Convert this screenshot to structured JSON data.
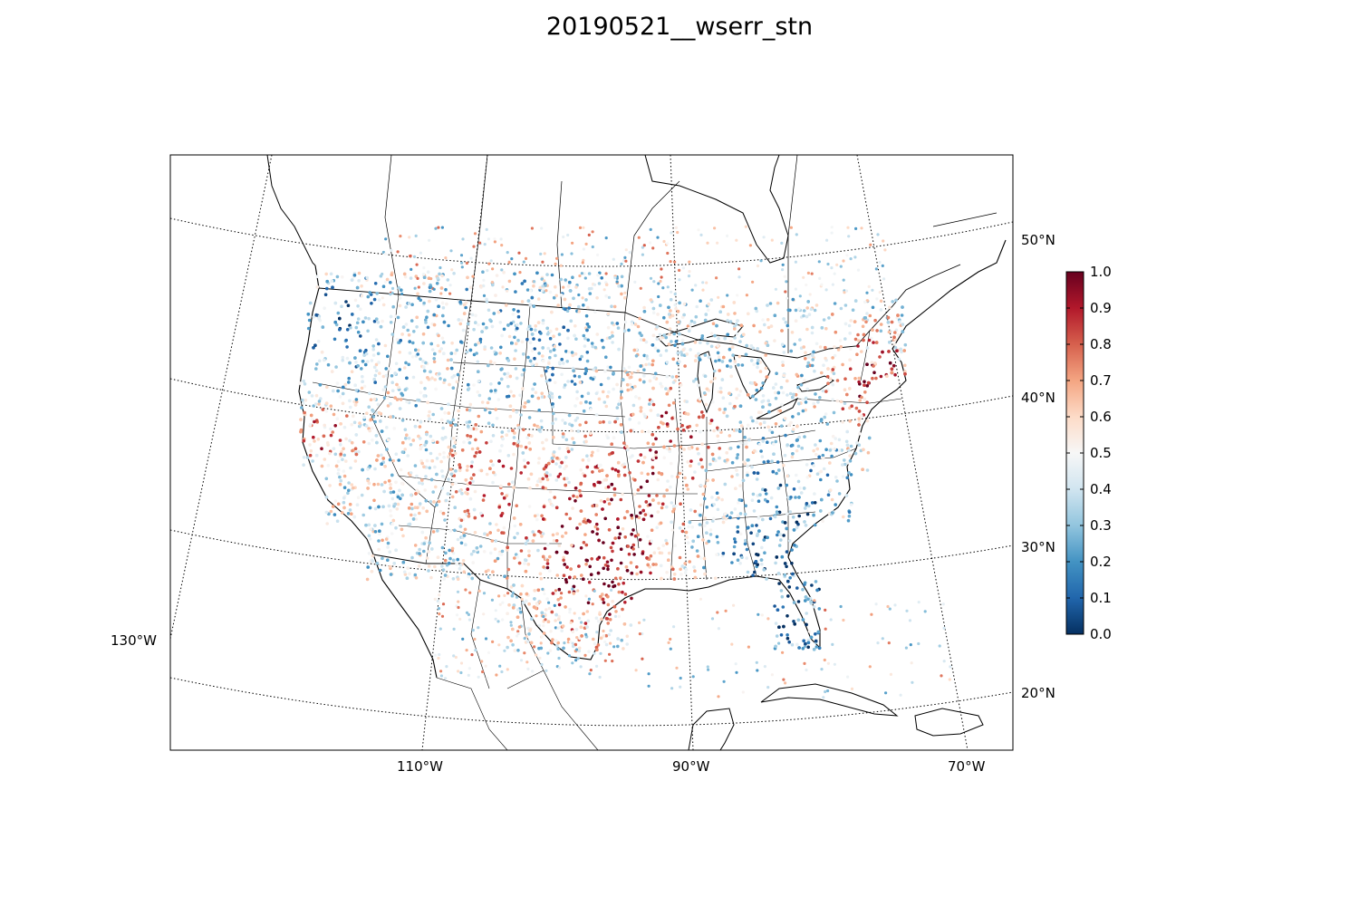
{
  "title": "20190521__wserr_stn",
  "map": {
    "projection": "Lambert conformal conic, CONUS",
    "parallels": [
      {
        "label": "50°N"
      },
      {
        "label": "40°N"
      },
      {
        "label": "30°N"
      },
      {
        "label": "20°N"
      }
    ],
    "meridians": [
      {
        "label": "130°W"
      },
      {
        "label": "110°W"
      },
      {
        "label": "90°W"
      },
      {
        "label": "70°W"
      }
    ],
    "coastline_color": "#000000",
    "graticule_style": "dotted"
  },
  "colorbar": {
    "colormap": "RdBu_r",
    "min": 0.0,
    "max": 1.0,
    "ticks": [
      "0.0",
      "0.1",
      "0.2",
      "0.3",
      "0.4",
      "0.5",
      "0.6",
      "0.7",
      "0.8",
      "0.9",
      "1.0"
    ],
    "stops": [
      "#053061",
      "#2166ac",
      "#4393c3",
      "#92c5de",
      "#d1e5f0",
      "#f7f7f7",
      "#fddbc7",
      "#f4a582",
      "#d6604d",
      "#b2182b",
      "#67001f"
    ]
  },
  "chart_data": {
    "type": "scatter",
    "title": "20190521__wserr_stn",
    "value_range": [
      0.0,
      1.0
    ],
    "variable": "wserr_stn",
    "note_regions": [
      {
        "region": "Northeast / New England",
        "level": "high"
      },
      {
        "region": "Texas / Oklahoma / Kansas",
        "level": "high"
      },
      {
        "region": "California coast",
        "level": "high"
      },
      {
        "region": "Pacific Northwest",
        "level": "low"
      },
      {
        "region": "Southeast / Florida",
        "level": "low"
      },
      {
        "region": "Northern Plains",
        "level": "low"
      }
    ]
  }
}
